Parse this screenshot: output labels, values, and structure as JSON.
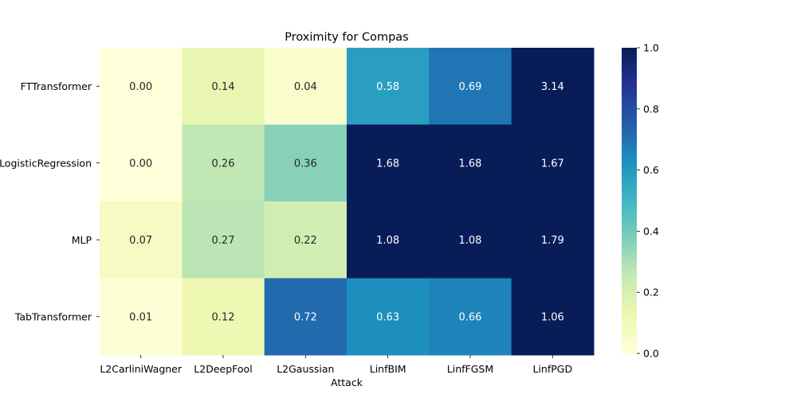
{
  "chart_data": {
    "type": "heatmap",
    "title": "Proximity for Compas",
    "xlabel": "Attack",
    "ylabel": "",
    "x_categories": [
      "L2CarliniWagner",
      "L2DeepFool",
      "L2Gaussian",
      "LinfBIM",
      "LinfFGSM",
      "LinfPGD"
    ],
    "y_categories": [
      "FTTransformer",
      "LogisticRegression",
      "MLP",
      "TabTransformer"
    ],
    "values": [
      [
        0.0,
        0.14,
        0.04,
        0.58,
        0.69,
        3.14
      ],
      [
        0.0,
        0.26,
        0.36,
        1.68,
        1.68,
        1.67
      ],
      [
        0.07,
        0.27,
        0.22,
        1.08,
        1.08,
        1.79
      ],
      [
        0.01,
        0.12,
        0.72,
        0.63,
        0.66,
        1.06
      ]
    ],
    "value_format": "0.00",
    "colorscale": "YlGnBu",
    "color_range": [
      0.0,
      1.0
    ],
    "colorbar_ticks": [
      "0.0",
      "0.2",
      "0.4",
      "0.6",
      "0.8",
      "1.0"
    ],
    "colors": {
      "scale_stops": [
        "#ffffd9",
        "#edf8b1",
        "#c7e9b4",
        "#7fcdbb",
        "#41b6c4",
        "#1d91c0",
        "#225ea8",
        "#253494",
        "#081d58"
      ],
      "dark_text": "#262626",
      "light_text": "#ffffff"
    }
  }
}
